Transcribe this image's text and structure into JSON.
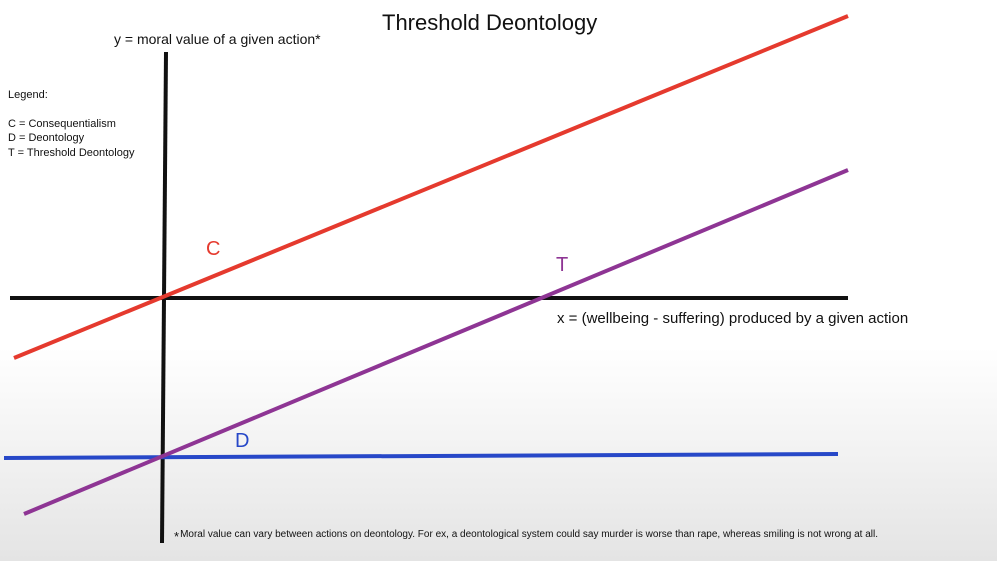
{
  "title": "Threshold Deontology",
  "y_axis_label": "y = moral value of a given action*",
  "x_axis_label": "x = (wellbeing - suffering) produced by a given action",
  "legend": {
    "heading": "Legend:",
    "items": [
      "C = Consequentialism",
      "D = Deontology",
      "T = Threshold Deontology"
    ]
  },
  "lines": {
    "c": {
      "label": "C",
      "color": "#e53a2e"
    },
    "t": {
      "label": "T",
      "color": "#8e3594"
    },
    "d": {
      "label": "D",
      "color": "#2748c8"
    }
  },
  "axis_color": "#111111",
  "footnote": {
    "marker": "*",
    "text": "Moral value can vary between actions on deontology.  For ex, a deontological system could say murder is worse than rape, whereas smiling is not wrong at all."
  }
}
